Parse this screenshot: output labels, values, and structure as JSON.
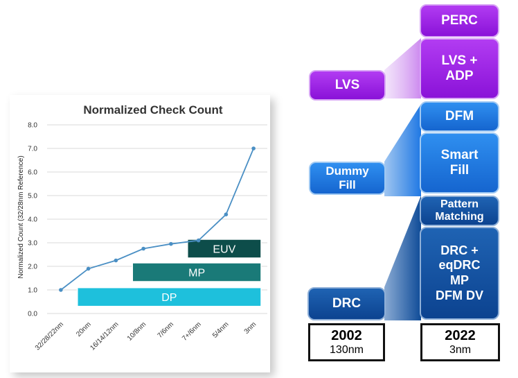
{
  "chart_data": {
    "type": "line",
    "title": "Normalized Check Count",
    "ylabel": "Normalized Count (32/28nm Reference)",
    "xlabel": "",
    "ylim": [
      0,
      8
    ],
    "yticks": [
      "0.0",
      "1.0",
      "2.0",
      "3.0",
      "4.0",
      "5.0",
      "6.0",
      "7.0",
      "8.0"
    ],
    "categories": [
      "32/28/22nm",
      "20nm",
      "16/14/12nm",
      "10/8nm",
      "7/6nm",
      "7+/6nm",
      "5/4nm",
      "3nm"
    ],
    "series": [
      {
        "values": [
          1.0,
          1.9,
          2.25,
          2.75,
          2.95,
          3.1,
          4.2,
          7.0
        ],
        "color": "#4a8fc4"
      }
    ],
    "grid": true,
    "bands": [
      {
        "label": "EUV",
        "start": 5.0,
        "end": 7.0,
        "row": 2.75,
        "color": "#0d4d4a"
      },
      {
        "label": "MP",
        "start": 3.0,
        "end": 7.0,
        "row": 1.75,
        "color": "#1a7a78"
      },
      {
        "label": "DP",
        "start": 1.0,
        "end": 7.0,
        "row": 0.7,
        "color": "#1ec0dc"
      }
    ]
  },
  "flow": {
    "left": {
      "lvs": "LVS",
      "dummy_fill": "Dummy\nFill",
      "drc": "DRC"
    },
    "right": {
      "perc": "PERC",
      "lvs_adp": "LVS +\nADP",
      "dfm": "DFM",
      "smart_fill": "Smart\nFill",
      "pattern_matching": "Pattern\nMatching",
      "drc_stack": "DRC +\neqDRC\nMP\nDFM DV"
    },
    "years": {
      "left": {
        "year": "2002",
        "node": "130nm"
      },
      "right": {
        "year": "2022",
        "node": "3nm"
      }
    }
  }
}
